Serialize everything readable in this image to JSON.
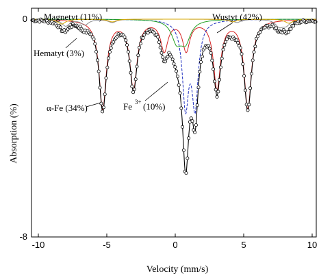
{
  "chart_data": {
    "type": "line",
    "title": "",
    "xlabel": "Velocity (mm/s)",
    "ylabel": "Absorption (%)",
    "xlim": [
      -10.5,
      10.3
    ],
    "ylim": [
      -8,
      0.4
    ],
    "x_ticks": [
      -10,
      -5,
      0,
      5,
      10
    ],
    "x_tick_labels": [
      "-10",
      "-5",
      "0",
      "5",
      "10"
    ],
    "y_ticks": [
      0,
      -8
    ],
    "y_tick_labels": [
      "0",
      "-8"
    ],
    "grid": false,
    "legend": "none",
    "annotations": [
      {
        "text": "Magnetyt (11%)",
        "x": -6.6,
        "y": 0.15
      },
      {
        "text": "Wustyt (42%)",
        "x": 2.6,
        "y": 0.15
      },
      {
        "text": "Hematyt (3%)",
        "x": -7.3,
        "y": -0.95
      },
      {
        "text": "α-Fe (34%)",
        "x": -7.3,
        "y": -3.15
      },
      {
        "text": "Fe",
        "x": -1.2,
        "y": -3.7
      },
      {
        "text": "3+",
        "x": -0.5,
        "y": -3.5
      },
      {
        "text": "(10%)",
        "x": 0.4,
        "y": -3.7
      }
    ],
    "series": [
      {
        "color": "#d62020",
        "style": "solid",
        "lines": [
          {
            "x": -5.3,
            "depth": 3.25,
            "w": 0.32
          },
          {
            "x": -3.05,
            "depth": 2.5,
            "w": 0.32
          },
          {
            "x": -0.8,
            "depth": 1.1,
            "w": 0.32
          },
          {
            "x": 0.8,
            "depth": 1.1,
            "w": 0.32
          },
          {
            "x": 3.05,
            "depth": 2.5,
            "w": 0.32
          },
          {
            "x": 5.3,
            "depth": 3.25,
            "w": 0.32
          }
        ]
      },
      {
        "color": "#1a2bbf",
        "style": "dashed",
        "lines": [
          {
            "x": 0.75,
            "depth": 3.05,
            "w": 0.28
          },
          {
            "x": 1.45,
            "depth": 3.05,
            "w": 0.28
          }
        ]
      },
      {
        "color": "#22a022",
        "style": "solid",
        "lines": [
          {
            "x": 0.1,
            "depth": 0.75,
            "w": 0.45
          },
          {
            "x": 0.75,
            "depth": 0.75,
            "w": 0.45
          }
        ]
      },
      {
        "color": "#8a8a8a",
        "style": "solid",
        "lines": [
          {
            "x": -8.0,
            "depth": 0.25,
            "w": 0.35
          },
          {
            "x": -6.6,
            "depth": 0.2,
            "w": 0.35
          },
          {
            "x": -4.6,
            "depth": 0.12,
            "w": 0.35
          },
          {
            "x": 4.5,
            "depth": 0.12,
            "w": 0.35
          },
          {
            "x": 7.6,
            "depth": 0.25,
            "w": 0.35
          },
          {
            "x": 8.1,
            "depth": 0.2,
            "w": 0.35
          }
        ]
      },
      {
        "color": "#d8a800",
        "style": "solid",
        "lines": [
          {
            "x": -8.3,
            "depth": 0.18,
            "w": 0.35
          },
          {
            "x": -4.6,
            "depth": 0.1,
            "w": 0.35
          },
          {
            "x": 4.2,
            "depth": 0.1,
            "w": 0.35
          },
          {
            "x": 8.3,
            "depth": 0.15,
            "w": 0.35
          }
        ]
      }
    ]
  }
}
